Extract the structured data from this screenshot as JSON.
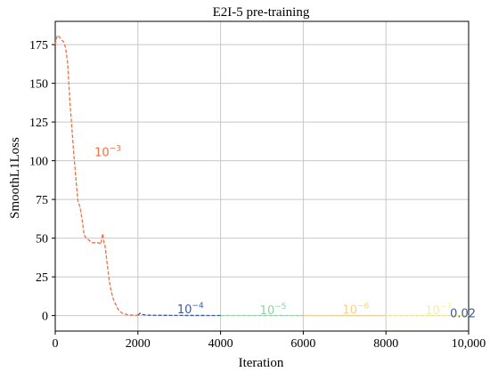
{
  "chart_data": {
    "type": "line",
    "title": "E2I-5 pre-training",
    "xlabel": "Iteration",
    "ylabel": "SmoothL1Loss",
    "xlim": [
      0,
      10000
    ],
    "ylim": [
      -10,
      190
    ],
    "xticks": [
      0,
      2000,
      4000,
      6000,
      8000,
      10000
    ],
    "xtick_labels": [
      "0",
      "2000",
      "4000",
      "6000",
      "8000",
      "10,000"
    ],
    "yticks": [
      0,
      25,
      50,
      75,
      100,
      125,
      150,
      175
    ],
    "ytick_labels": [
      "0",
      "25",
      "50",
      "75",
      "100",
      "125",
      "150",
      "175"
    ],
    "grid": true,
    "line_style": "dashed",
    "series": [
      {
        "name": "10^-3",
        "color": "#f07040",
        "x": [
          0,
          50,
          100,
          150,
          200,
          250,
          300,
          350,
          400,
          450,
          500,
          550,
          600,
          650,
          700,
          750,
          800,
          850,
          900,
          950,
          1000,
          1050,
          1100,
          1150,
          1180,
          1200,
          1250,
          1300,
          1350,
          1400,
          1450,
          1500,
          1550,
          1600,
          1650,
          1700,
          1750,
          1800,
          1850,
          1900,
          1950,
          2000
        ],
        "y": [
          175,
          181,
          180,
          178,
          177,
          173,
          163,
          140,
          122,
          104,
          88,
          74,
          70,
          62,
          52,
          50,
          49,
          48,
          47,
          47,
          47,
          47,
          46,
          53,
          47,
          46,
          35,
          24,
          16,
          11,
          8,
          5,
          3,
          2,
          1,
          1,
          0.5,
          0.4,
          0.3,
          0.3,
          0.2,
          0.2
        ]
      },
      {
        "name": "10^-4",
        "color": "#3a5aa8",
        "x": [
          2000,
          2050,
          2100,
          2200,
          2400,
          2800,
          3200,
          3600,
          4000
        ],
        "y": [
          0.2,
          1.5,
          0.8,
          0.3,
          0.2,
          0.15,
          0.1,
          0.08,
          0.07
        ]
      },
      {
        "name": "10^-5",
        "color": "#8fd2a4",
        "x": [
          4000,
          5000,
          6000
        ],
        "y": [
          0.06,
          0.05,
          0.04
        ]
      },
      {
        "name": "10^-6",
        "color": "#f5d27a",
        "x": [
          6000,
          7000,
          8000
        ],
        "y": [
          0.035,
          0.03,
          0.028
        ]
      },
      {
        "name": "10^-7",
        "color": "#f7ef9a",
        "x": [
          8000,
          9000,
          10000
        ],
        "y": [
          0.025,
          0.022,
          0.02
        ]
      }
    ],
    "annotations": [
      {
        "base": "10",
        "exp": "−3",
        "x": 950,
        "y": 103,
        "color": "#f07040"
      },
      {
        "base": "10",
        "exp": "−4",
        "x": 2950,
        "y": 1.5,
        "color": "#3a5aa8"
      },
      {
        "base": "10",
        "exp": "−5",
        "x": 4950,
        "y": 1.0,
        "color": "#8fd2a4"
      },
      {
        "base": "10",
        "exp": "−6",
        "x": 6950,
        "y": 1.2,
        "color": "#f5d27a"
      },
      {
        "base": "10",
        "exp": "−7",
        "x": 8950,
        "y": 1.0,
        "color": "#f7ef9a"
      },
      {
        "text": "0.02",
        "x": 9550,
        "y": -1,
        "color": "#3a5aa8"
      }
    ]
  }
}
